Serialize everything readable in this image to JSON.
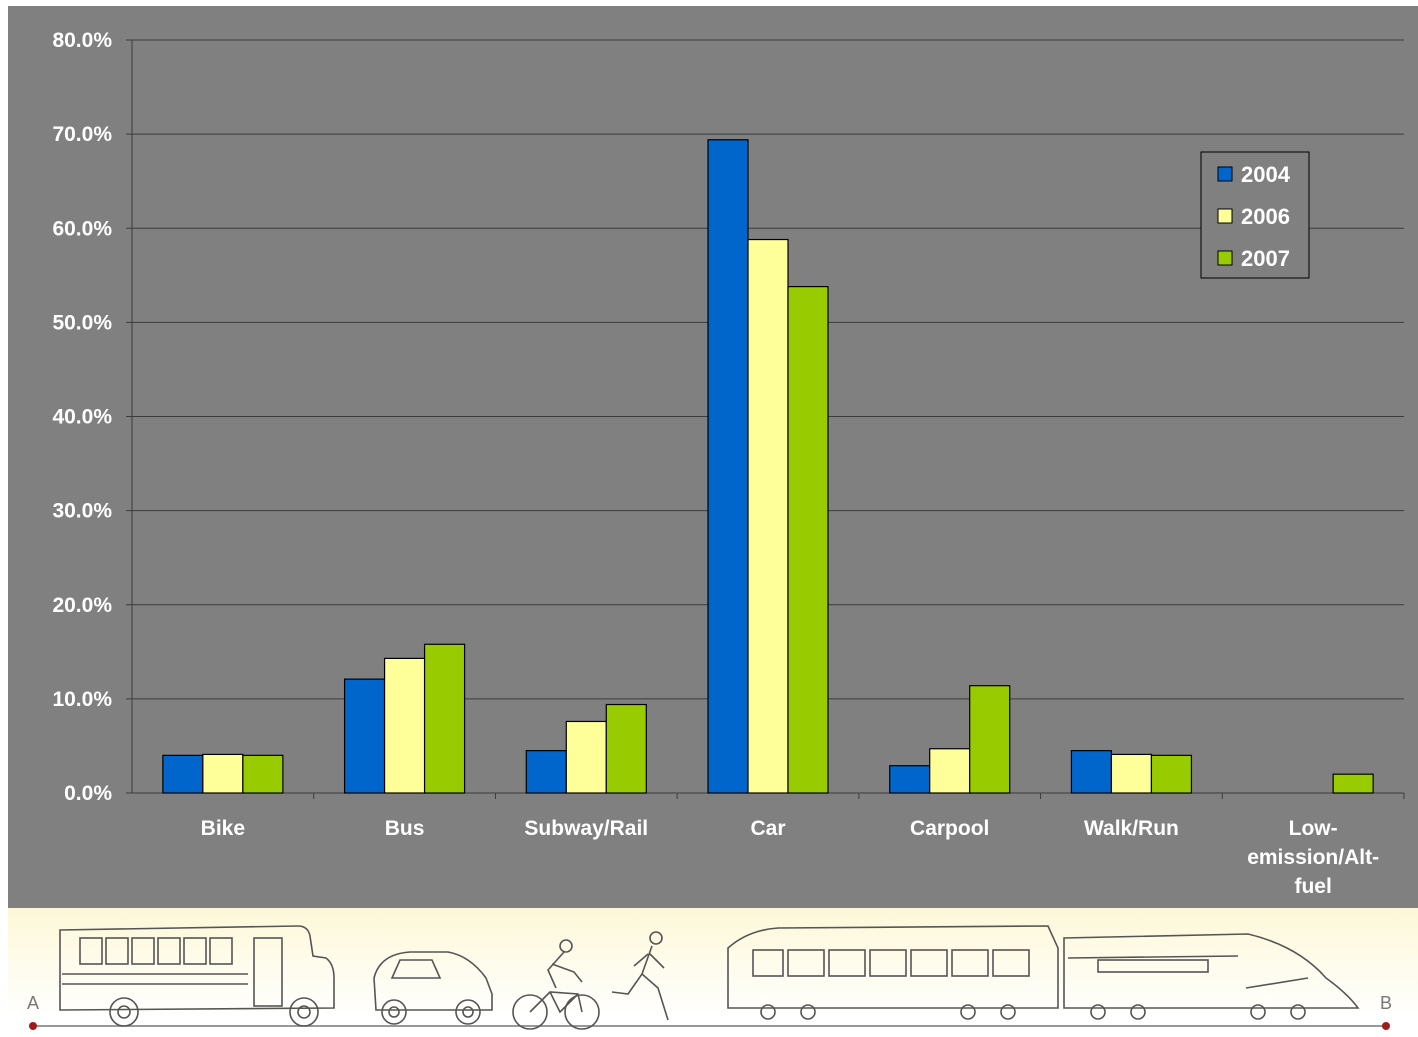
{
  "chart_data": {
    "type": "bar",
    "categories": [
      "Bike",
      "Bus",
      "Subway/Rail",
      "Car",
      "Carpool",
      "Walk/Run",
      "Low-emission/Alt-fuel"
    ],
    "category_label_lines": [
      [
        "Bike"
      ],
      [
        "Bus"
      ],
      [
        "Subway/Rail"
      ],
      [
        "Car"
      ],
      [
        "Carpool"
      ],
      [
        "Walk/Run"
      ],
      [
        "Low-",
        "emission/Alt-",
        "fuel"
      ]
    ],
    "series": [
      {
        "name": "2004",
        "color": "#0066cc",
        "values": [
          4.0,
          12.1,
          4.5,
          69.4,
          2.9,
          4.5,
          0.0
        ]
      },
      {
        "name": "2006",
        "color": "#ffff99",
        "values": [
          4.1,
          14.3,
          7.6,
          58.8,
          4.7,
          4.1,
          0.0
        ]
      },
      {
        "name": "2007",
        "color": "#99cc00",
        "values": [
          4.0,
          15.8,
          9.4,
          53.8,
          11.4,
          4.0,
          2.0
        ]
      }
    ],
    "yticks": [
      "0.0%",
      "10.0%",
      "20.0%",
      "30.0%",
      "40.0%",
      "50.0%",
      "60.0%",
      "70.0%",
      "80.0%"
    ],
    "ylim": [
      0,
      80
    ],
    "title": "",
    "xlabel": "",
    "ylabel": "",
    "grid": true,
    "legend_position": "top-right",
    "background_color": "#808080"
  },
  "banner": {
    "start_label": "A",
    "end_label": "B",
    "illustrations": [
      "school-bus",
      "smart-car",
      "cyclist",
      "runner",
      "train"
    ]
  }
}
